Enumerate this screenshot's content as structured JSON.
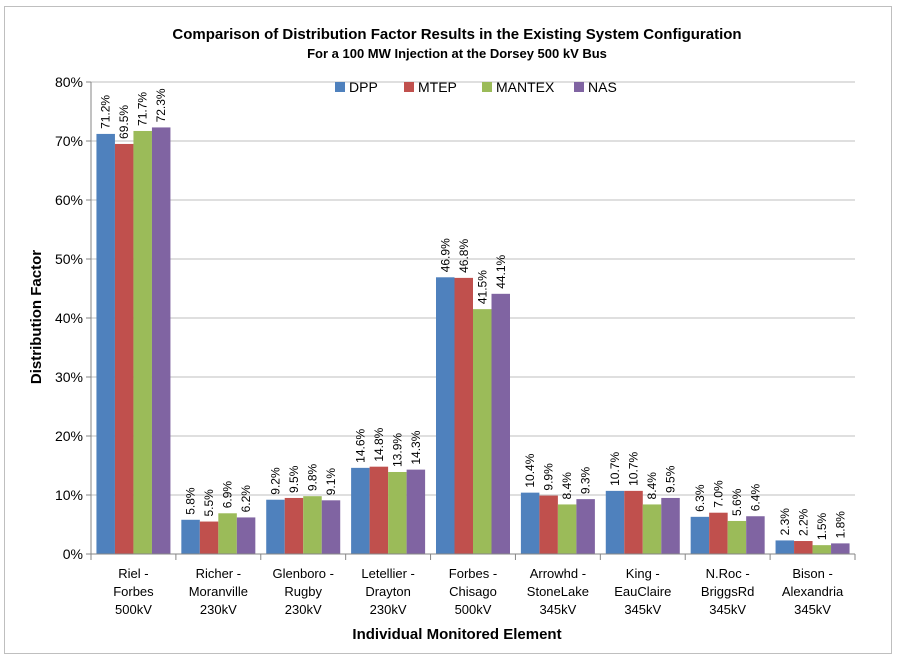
{
  "chart_data": {
    "type": "bar",
    "title": "Comparison of Distribution Factor Results in the Existing System Configuration",
    "subtitle": "For a 100 MW Injection at the Dorsey 500 kV Bus",
    "xlabel": "Individual Monitored Element",
    "ylabel": "Distribution Factor",
    "ylim": [
      0,
      80
    ],
    "yticks": [
      "0%",
      "10%",
      "20%",
      "30%",
      "40%",
      "50%",
      "60%",
      "70%",
      "80%"
    ],
    "legend_position": "top",
    "grid": true,
    "categories": [
      [
        "Riel -",
        "Forbes",
        "500kV"
      ],
      [
        "Richer -",
        "Moranville",
        "230kV"
      ],
      [
        "Glenboro -",
        "Rugby",
        "230kV"
      ],
      [
        "Letellier -",
        "Drayton",
        "230kV"
      ],
      [
        "Forbes -",
        "Chisago",
        "500kV"
      ],
      [
        "Arrowhd -",
        "StoneLake",
        "345kV"
      ],
      [
        "King -",
        "EauClaire",
        "345kV"
      ],
      [
        "N.Roc -",
        "BriggsRd",
        "345kV"
      ],
      [
        "Bison -",
        "Alexandria",
        "345kV"
      ]
    ],
    "series": [
      {
        "name": "DPP",
        "color": "#4f81bd",
        "values": [
          71.2,
          5.8,
          9.2,
          14.6,
          46.9,
          10.4,
          10.7,
          6.3,
          2.3
        ],
        "labels": [
          "71.2%",
          "5.8%",
          "9.2%",
          "14.6%",
          "46.9%",
          "10.4%",
          "10.7%",
          "6.3%",
          "2.3%"
        ]
      },
      {
        "name": "MTEP",
        "color": "#c0504d",
        "values": [
          69.5,
          5.5,
          9.5,
          14.8,
          46.8,
          9.9,
          10.7,
          7.0,
          2.2
        ],
        "labels": [
          "69.5%",
          "5.5%",
          "9.5%",
          "14.8%",
          "46.8%",
          "9.9%",
          "10.7%",
          "7.0%",
          "2.2%"
        ]
      },
      {
        "name": "MANTEX",
        "color": "#9bbb59",
        "values": [
          71.7,
          6.9,
          9.8,
          13.9,
          41.5,
          8.4,
          8.4,
          5.6,
          1.5
        ],
        "labels": [
          "71.7%",
          "6.9%",
          "9.8%",
          "13.9%",
          "41.5%",
          "8.4%",
          "8.4%",
          "5.6%",
          "1.5%"
        ]
      },
      {
        "name": "NAS",
        "color": "#8064a2",
        "values": [
          72.3,
          6.2,
          9.1,
          14.3,
          44.1,
          9.3,
          9.5,
          6.4,
          1.8
        ],
        "labels": [
          "72.3%",
          "6.2%",
          "9.1%",
          "14.3%",
          "44.1%",
          "9.3%",
          "9.5%",
          "6.4%",
          "1.8%"
        ]
      }
    ]
  }
}
